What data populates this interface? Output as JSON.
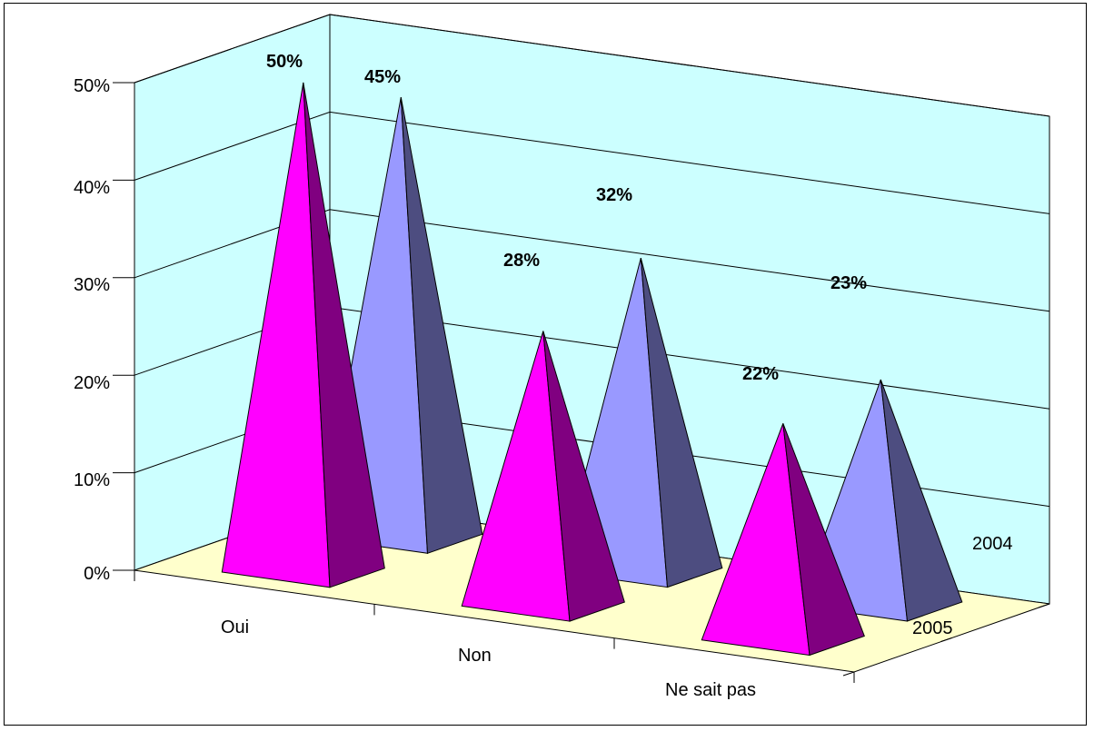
{
  "chart_data": {
    "type": "bar",
    "bar_shape": "pyramid",
    "three_d": true,
    "categories": [
      "Oui",
      "Non",
      "Ne sait pas"
    ],
    "series": [
      {
        "name": "2005",
        "values": [
          50,
          28,
          22
        ],
        "labels": [
          "50%",
          "28%",
          "22%"
        ],
        "color": "#ff00ff",
        "side_color": "#800080"
      },
      {
        "name": "2004",
        "values": [
          45,
          32,
          23
        ],
        "labels": [
          "45%",
          "32%",
          "23%"
        ],
        "color": "#9999ff",
        "side_color": "#4d4d80"
      }
    ],
    "y_ticks": [
      "0%",
      "10%",
      "20%",
      "30%",
      "40%",
      "50%"
    ],
    "ylim": [
      0,
      50
    ],
    "grid": true,
    "colors": {
      "walls": "#ccffff",
      "floor": "#ffffcc",
      "frame": "#000000"
    }
  }
}
